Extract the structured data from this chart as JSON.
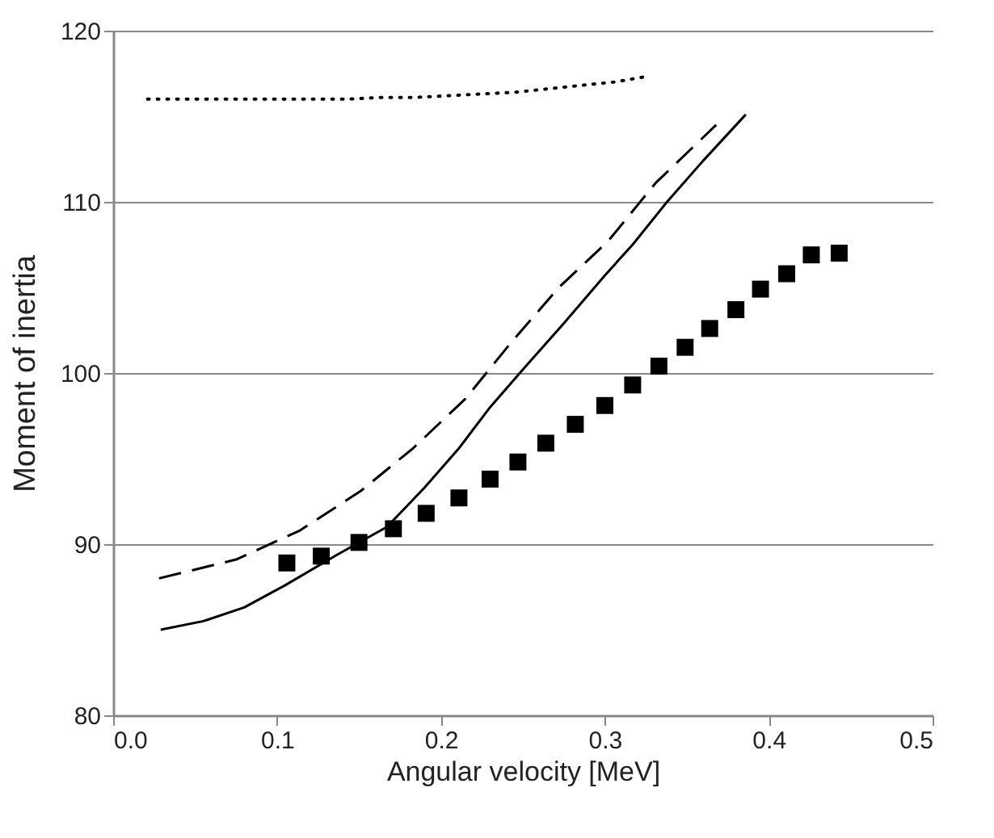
{
  "chart_data": {
    "type": "line",
    "xlabel": "Angular velocity [MeV]",
    "ylabel": "Moment of inertia",
    "xlim": [
      0,
      0.5
    ],
    "ylim": [
      80,
      120
    ],
    "xticks": [
      {
        "value": 0,
        "label": "0.0"
      },
      0.1,
      0.2,
      0.3,
      0.4,
      0.5
    ],
    "yticks": [
      80,
      90,
      100,
      110,
      120
    ],
    "grid": "y",
    "series": [
      {
        "color": "#000000",
        "line_style": "dotted",
        "x": [
          0.021,
          0.041,
          0.062,
          0.082,
          0.102,
          0.123,
          0.143,
          0.163,
          0.184,
          0.204,
          0.224,
          0.245,
          0.265,
          0.285,
          0.306,
          0.324
        ],
        "values": [
          116.0,
          116.0,
          116.0,
          116.0,
          116.0,
          116.0,
          116.0,
          116.1,
          116.1,
          116.2,
          116.3,
          116.4,
          116.6,
          116.8,
          117.0,
          117.3
        ]
      },
      {
        "color": "#000000",
        "line_style": "solid",
        "x": [
          0.029,
          0.055,
          0.08,
          0.105,
          0.137,
          0.167,
          0.19,
          0.211,
          0.23,
          0.25,
          0.275,
          0.3,
          0.317,
          0.338,
          0.36,
          0.386
        ],
        "values": [
          85.0,
          85.5,
          86.3,
          87.6,
          89.4,
          91.0,
          93.3,
          95.6,
          98.0,
          100.2,
          102.9,
          105.7,
          107.5,
          110.0,
          112.4,
          115.1
        ]
      },
      {
        "color": "#000000",
        "line_style": "dashed",
        "x": [
          0.028,
          0.075,
          0.114,
          0.151,
          0.183,
          0.215,
          0.243,
          0.272,
          0.302,
          0.331,
          0.368
        ],
        "values": [
          88.0,
          89.1,
          90.8,
          93.1,
          95.6,
          98.5,
          101.8,
          105.0,
          107.7,
          111.1,
          114.5
        ]
      },
      {
        "type": "scatter",
        "color": "#000000",
        "marker": "square",
        "x": [
          0.106,
          0.127,
          0.15,
          0.171,
          0.191,
          0.211,
          0.23,
          0.247,
          0.264,
          0.282,
          0.3,
          0.317,
          0.333,
          0.349,
          0.364,
          0.38,
          0.395,
          0.411,
          0.426,
          0.443
        ],
        "values": [
          88.9,
          89.3,
          90.1,
          90.9,
          91.8,
          92.7,
          93.8,
          94.8,
          95.9,
          97.0,
          98.1,
          99.3,
          100.4,
          101.5,
          102.6,
          103.7,
          104.9,
          105.8,
          106.9,
          107.0
        ]
      }
    ]
  }
}
